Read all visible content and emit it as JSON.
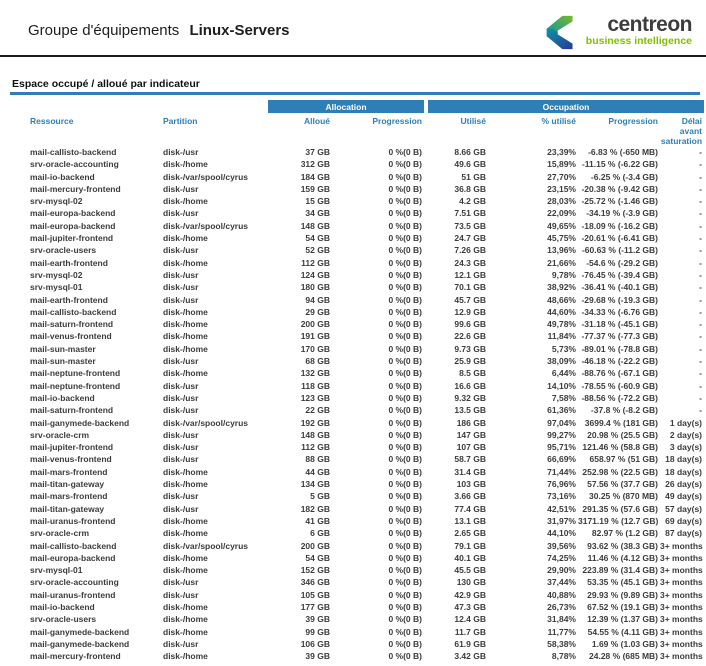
{
  "page": {
    "title_prefix": "Groupe d'équipements",
    "title_name": "Linux-Servers"
  },
  "logo": {
    "brand": "centreon",
    "tagline": "business intelligence",
    "mark_icon": "centreon-c-chevron"
  },
  "section": {
    "title": "Espace occupé / alloué par indicateur"
  },
  "colors": {
    "accent_blue": "#2d7fb5",
    "text_dark": "#3c3c3c",
    "logo_green": "#76b82a",
    "logo_teal": "#0c93a8",
    "logo_blue": "#283a97",
    "tagline_green": "#84bd00"
  },
  "table": {
    "groups": {
      "allocation": "Allocation",
      "occupation": "Occupation"
    },
    "columns": [
      "Ressource",
      "Partition",
      "Alloué",
      "Progression",
      "Utilisé",
      "% utilisé",
      "Progression",
      "Délai avant saturation"
    ],
    "col_names": [
      "resource",
      "partition",
      "allocated",
      "allocation-progression",
      "used",
      "used-percent",
      "occupation-progression",
      "saturation-delay"
    ],
    "rows": [
      [
        "mail-callisto-backend",
        "disk-/usr",
        "37 GB",
        "0 %(0 B)",
        "8.66 GB",
        "23,39%",
        "-6.83 % (-650 MB)",
        "-"
      ],
      [
        "srv-oracle-accounting",
        "disk-/home",
        "312 GB",
        "0 %(0 B)",
        "49.6 GB",
        "15,89%",
        "-11.15 % (-6.22 GB)",
        "-"
      ],
      [
        "mail-io-backend",
        "disk-/var/spool/cyrus",
        "184 GB",
        "0 %(0 B)",
        "51 GB",
        "27,70%",
        "-6.25 % (-3.4 GB)",
        "-"
      ],
      [
        "mail-mercury-frontend",
        "disk-/usr",
        "159 GB",
        "0 %(0 B)",
        "36.8 GB",
        "23,15%",
        "-20.38 % (-9.42 GB)",
        "-"
      ],
      [
        "srv-mysql-02",
        "disk-/home",
        "15 GB",
        "0 %(0 B)",
        "4.2 GB",
        "28,03%",
        "-25.72 % (-1.46 GB)",
        "-"
      ],
      [
        "mail-europa-backend",
        "disk-/usr",
        "34 GB",
        "0 %(0 B)",
        "7.51 GB",
        "22,09%",
        "-34.19 % (-3.9 GB)",
        "-"
      ],
      [
        "mail-europa-backend",
        "disk-/var/spool/cyrus",
        "148 GB",
        "0 %(0 B)",
        "73.5 GB",
        "49,65%",
        "-18.09 % (-16.2 GB)",
        "-"
      ],
      [
        "mail-jupiter-frontend",
        "disk-/home",
        "54 GB",
        "0 %(0 B)",
        "24.7 GB",
        "45,75%",
        "-20.61 % (-6.41 GB)",
        "-"
      ],
      [
        "srv-oracle-users",
        "disk-/usr",
        "52 GB",
        "0 %(0 B)",
        "7.26 GB",
        "13,96%",
        "-60.63 % (-11.2 GB)",
        "-"
      ],
      [
        "mail-earth-frontend",
        "disk-/home",
        "112 GB",
        "0 %(0 B)",
        "24.3 GB",
        "21,66%",
        "-54.6 % (-29.2 GB)",
        "-"
      ],
      [
        "srv-mysql-02",
        "disk-/usr",
        "124 GB",
        "0 %(0 B)",
        "12.1 GB",
        "9,78%",
        "-76.45 % (-39.4 GB)",
        "-"
      ],
      [
        "srv-mysql-01",
        "disk-/usr",
        "180 GB",
        "0 %(0 B)",
        "70.1 GB",
        "38,92%",
        "-36.41 % (-40.1 GB)",
        "-"
      ],
      [
        "mail-earth-frontend",
        "disk-/usr",
        "94 GB",
        "0 %(0 B)",
        "45.7 GB",
        "48,66%",
        "-29.68 % (-19.3 GB)",
        "-"
      ],
      [
        "mail-callisto-backend",
        "disk-/home",
        "29 GB",
        "0 %(0 B)",
        "12.9 GB",
        "44,60%",
        "-34.33 % (-6.76 GB)",
        "-"
      ],
      [
        "mail-saturn-frontend",
        "disk-/home",
        "200 GB",
        "0 %(0 B)",
        "99.6 GB",
        "49,78%",
        "-31.18 % (-45.1 GB)",
        "-"
      ],
      [
        "mail-venus-frontend",
        "disk-/home",
        "191 GB",
        "0 %(0 B)",
        "22.6 GB",
        "11,84%",
        "-77.37 % (-77.3 GB)",
        "-"
      ],
      [
        "mail-sun-master",
        "disk-/home",
        "170 GB",
        "0 %(0 B)",
        "9.73 GB",
        "5,73%",
        "-89.01 % (-78.8 GB)",
        "-"
      ],
      [
        "mail-sun-master",
        "disk-/usr",
        "68 GB",
        "0 %(0 B)",
        "25.9 GB",
        "38,09%",
        "-46.18 % (-22.2 GB)",
        "-"
      ],
      [
        "mail-neptune-frontend",
        "disk-/home",
        "132 GB",
        "0 %(0 B)",
        "8.5 GB",
        "6,44%",
        "-88.76 % (-67.1 GB)",
        "-"
      ],
      [
        "mail-neptune-frontend",
        "disk-/usr",
        "118 GB",
        "0 %(0 B)",
        "16.6 GB",
        "14,10%",
        "-78.55 % (-60.9 GB)",
        "-"
      ],
      [
        "mail-io-backend",
        "disk-/usr",
        "123 GB",
        "0 %(0 B)",
        "9.32 GB",
        "7,58%",
        "-88.56 % (-72.2 GB)",
        "-"
      ],
      [
        "mail-saturn-frontend",
        "disk-/usr",
        "22 GB",
        "0 %(0 B)",
        "13.5 GB",
        "61,36%",
        "-37.8 % (-8.2 GB)",
        "-"
      ],
      [
        "mail-ganymede-backend",
        "disk-/var/spool/cyrus",
        "192 GB",
        "0 %(0 B)",
        "186 GB",
        "97,04%",
        "3699.4 % (181 GB)",
        "1 day(s)"
      ],
      [
        "srv-oracle-crm",
        "disk-/usr",
        "148 GB",
        "0 %(0 B)",
        "147 GB",
        "99,27%",
        "20.98 % (25.5 GB)",
        "2 day(s)"
      ],
      [
        "mail-jupiter-frontend",
        "disk-/usr",
        "112 GB",
        "0 %(0 B)",
        "107 GB",
        "95,71%",
        "121.46 % (58.8 GB)",
        "3 day(s)"
      ],
      [
        "mail-venus-frontend",
        "disk-/usr",
        "88 GB",
        "0 %(0 B)",
        "58.7 GB",
        "66,69%",
        "658.97 % (51 GB)",
        "18 day(s)"
      ],
      [
        "mail-mars-frontend",
        "disk-/home",
        "44 GB",
        "0 %(0 B)",
        "31.4 GB",
        "71,44%",
        "252.98 % (22.5 GB)",
        "18 day(s)"
      ],
      [
        "mail-titan-gateway",
        "disk-/home",
        "134 GB",
        "0 %(0 B)",
        "103 GB",
        "76,96%",
        "57.56 % (37.7 GB)",
        "26 day(s)"
      ],
      [
        "mail-mars-frontend",
        "disk-/usr",
        "5 GB",
        "0 %(0 B)",
        "3.66 GB",
        "73,16%",
        "30.25 % (870 MB)",
        "49 day(s)"
      ],
      [
        "mail-titan-gateway",
        "disk-/usr",
        "182 GB",
        "0 %(0 B)",
        "77.4 GB",
        "42,51%",
        "291.35 % (57.6 GB)",
        "57 day(s)"
      ],
      [
        "mail-uranus-frontend",
        "disk-/home",
        "41 GB",
        "0 %(0 B)",
        "13.1 GB",
        "31,97%",
        "3171.19 % (12.7 GB)",
        "69 day(s)"
      ],
      [
        "srv-oracle-crm",
        "disk-/home",
        "6 GB",
        "0 %(0 B)",
        "2.65 GB",
        "44,10%",
        "82.97 % (1.2 GB)",
        "87 day(s)"
      ],
      [
        "mail-callisto-backend",
        "disk-/var/spool/cyrus",
        "200 GB",
        "0 %(0 B)",
        "79.1 GB",
        "39,56%",
        "93.62 % (38.3 GB)",
        "3+ months"
      ],
      [
        "mail-europa-backend",
        "disk-/home",
        "54 GB",
        "0 %(0 B)",
        "40.1 GB",
        "74,25%",
        "11.46 % (4.12 GB)",
        "3+ months"
      ],
      [
        "srv-mysql-01",
        "disk-/home",
        "152 GB",
        "0 %(0 B)",
        "45.5 GB",
        "29,90%",
        "223.89 % (31.4 GB)",
        "3+ months"
      ],
      [
        "srv-oracle-accounting",
        "disk-/usr",
        "346 GB",
        "0 %(0 B)",
        "130 GB",
        "37,44%",
        "53.35 % (45.1 GB)",
        "3+ months"
      ],
      [
        "mail-uranus-frontend",
        "disk-/usr",
        "105 GB",
        "0 %(0 B)",
        "42.9 GB",
        "40,88%",
        "29.93 % (9.89 GB)",
        "3+ months"
      ],
      [
        "mail-io-backend",
        "disk-/home",
        "177 GB",
        "0 %(0 B)",
        "47.3 GB",
        "26,73%",
        "67.52 % (19.1 GB)",
        "3+ months"
      ],
      [
        "srv-oracle-users",
        "disk-/home",
        "39 GB",
        "0 %(0 B)",
        "12.4 GB",
        "31,84%",
        "12.39 % (1.37 GB)",
        "3+ months"
      ],
      [
        "mail-ganymede-backend",
        "disk-/home",
        "99 GB",
        "0 %(0 B)",
        "11.7 GB",
        "11,77%",
        "54.55 % (4.11 GB)",
        "3+ months"
      ],
      [
        "mail-ganymede-backend",
        "disk-/usr",
        "106 GB",
        "0 %(0 B)",
        "61.9 GB",
        "58,38%",
        "1.69 % (1.03 GB)",
        "3+ months"
      ],
      [
        "mail-mercury-frontend",
        "disk-/home",
        "39 GB",
        "0 %(0 B)",
        "3.42 GB",
        "8,78%",
        "24.28 % (685 MB)",
        "3+ months"
      ]
    ]
  }
}
